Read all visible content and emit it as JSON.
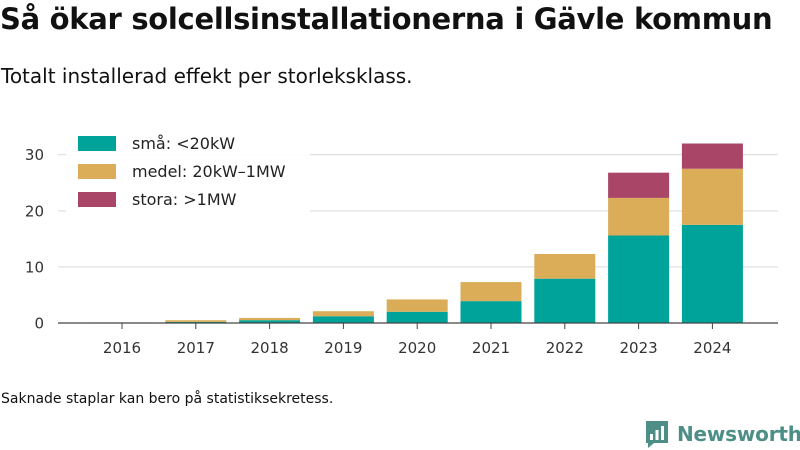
{
  "title": "Så ökar solcellsinstallationerna i Gävle kommun",
  "subtitle": "Totalt installerad effekt per storleksklass.",
  "footnote": "Saknade staplar kan bero på statistiksekretess.",
  "brand": {
    "name": "Newsworthy",
    "color": "#4d8f86",
    "icon": "newsworthy-logo-icon"
  },
  "chart_data": {
    "type": "bar",
    "stacked": true,
    "title": "",
    "xlabel": "",
    "ylabel": "",
    "categories": [
      "2016",
      "2017",
      "2018",
      "2019",
      "2020",
      "2021",
      "2022",
      "2023",
      "2024"
    ],
    "series": [
      {
        "name": "små: <20kW",
        "color": "#00a39a",
        "values": [
          0,
          0.2,
          0.5,
          1.2,
          2.0,
          3.9,
          7.9,
          15.6,
          17.5
        ]
      },
      {
        "name": "medel: 20kW–1MW",
        "color": "#dbad58",
        "values": [
          0.1,
          0.3,
          0.4,
          0.9,
          2.2,
          3.4,
          4.4,
          6.7,
          10.0
        ]
      },
      {
        "name": "stora: >1MW",
        "color": "#a94567",
        "values": [
          0,
          0,
          0,
          0,
          0,
          0,
          0,
          4.5,
          4.5
        ]
      }
    ],
    "ylim": [
      0,
      32
    ],
    "yticks": [
      0,
      10,
      20,
      30
    ],
    "grid": true,
    "legend": "top-left"
  }
}
